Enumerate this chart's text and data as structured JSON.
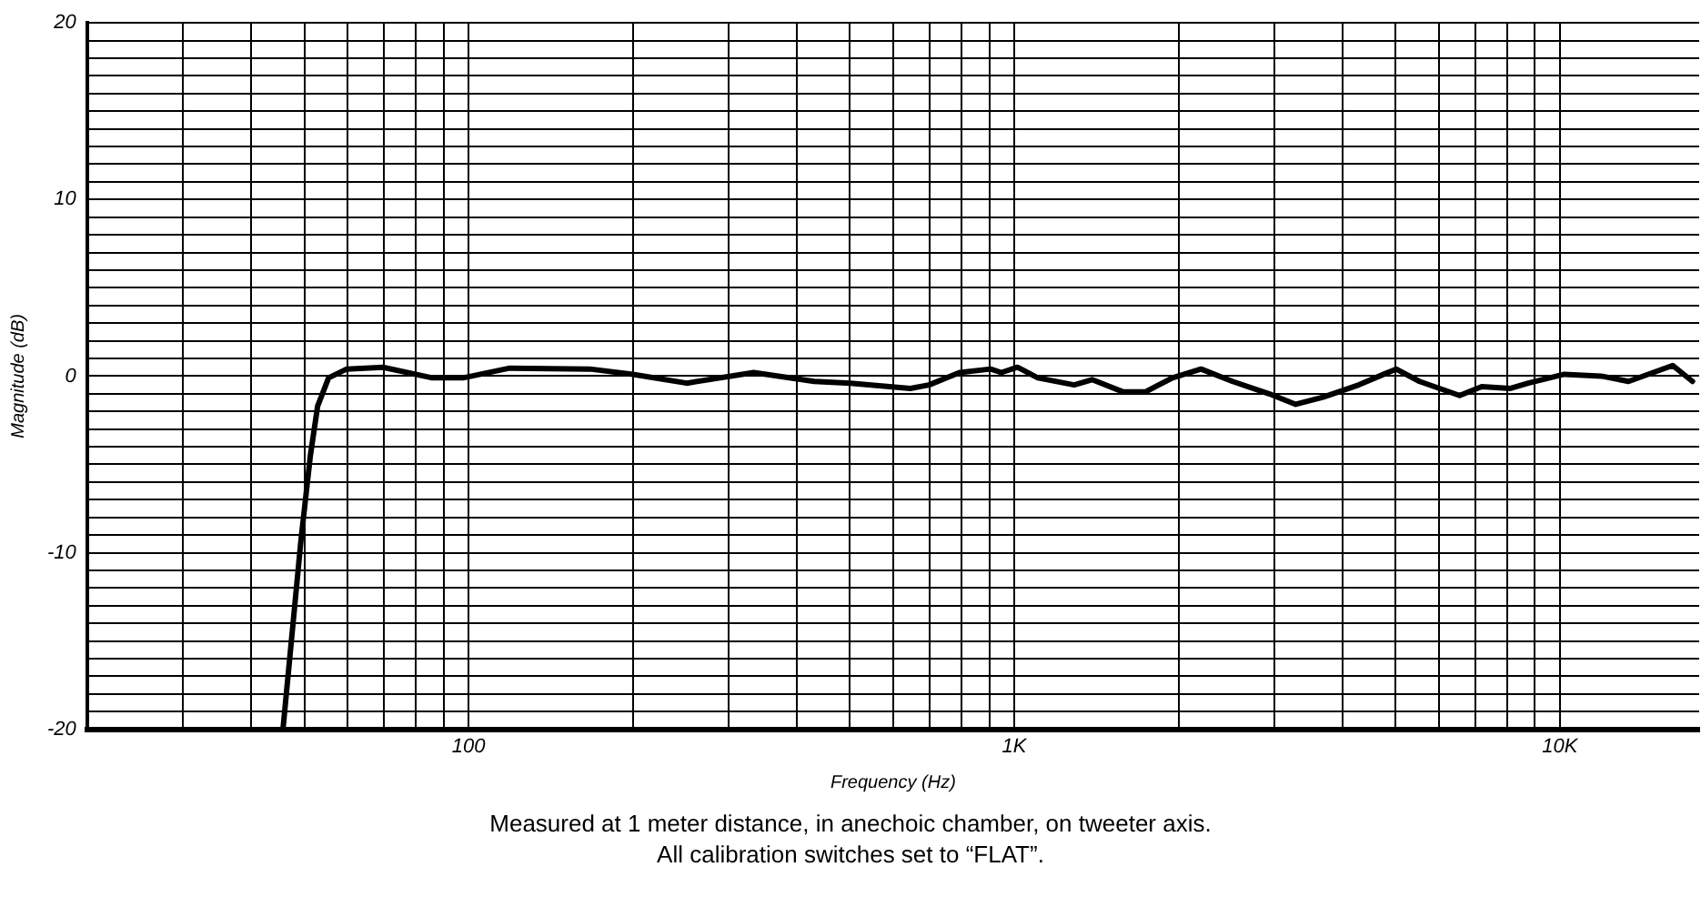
{
  "chart_data": {
    "type": "line",
    "xlabel": "Frequency (Hz)",
    "ylabel": "Magnitude (dB)",
    "x": [
      45.7,
      49.3,
      51.3,
      52.9,
      55.4,
      59.8,
      69.7,
      85.8,
      97.7,
      119,
      167,
      200,
      251,
      333,
      430,
      501,
      541,
      645,
      698,
      794,
      905,
      947,
      1014,
      1105,
      1288,
      1389,
      1585,
      1738,
      1950,
      2200,
      2512,
      2930,
      3280,
      3680,
      4280,
      5010,
      5530,
      6550,
      7190,
      8120,
      8750,
      10190,
      11910,
      13360,
      16100,
      17500
    ],
    "series": [
      {
        "color": "#000000",
        "values": [
          -20,
          -9.3,
          -4.5,
          -1.7,
          -0.1,
          0.4,
          0.5,
          -0.1,
          -0.1,
          0.45,
          0.4,
          0.1,
          -0.4,
          0.2,
          -0.3,
          -0.4,
          -0.5,
          -0.7,
          -0.5,
          0.2,
          0.4,
          0.2,
          0.5,
          -0.1,
          -0.5,
          -0.2,
          -0.9,
          -0.9,
          -0.1,
          0.4,
          -0.3,
          -1.0,
          -1.6,
          -1.2,
          -0.5,
          0.4,
          -0.3,
          -1.1,
          -0.6,
          -0.7,
          -0.4,
          0.1,
          0.0,
          -0.3,
          0.6,
          -0.3
        ]
      }
    ],
    "xlim": [
      20,
      18000
    ],
    "ylim": [
      -20,
      20
    ],
    "log": "x",
    "grid": true,
    "legend": false,
    "marker": "none",
    "line_style": "solid",
    "xticks": [
      {
        "value": 20,
        "label": null
      },
      {
        "value": 30,
        "label": null
      },
      {
        "value": 40,
        "label": null
      },
      {
        "value": 50,
        "label": null
      },
      {
        "value": 60,
        "label": null
      },
      {
        "value": 70,
        "label": null
      },
      {
        "value": 80,
        "label": null
      },
      {
        "value": 90,
        "label": null
      },
      {
        "value": 100,
        "label": "100"
      },
      {
        "value": 200,
        "label": null
      },
      {
        "value": 300,
        "label": null
      },
      {
        "value": 400,
        "label": null
      },
      {
        "value": 500,
        "label": null
      },
      {
        "value": 600,
        "label": null
      },
      {
        "value": 700,
        "label": null
      },
      {
        "value": 800,
        "label": null
      },
      {
        "value": 900,
        "label": null
      },
      {
        "value": 1000,
        "label": "1K"
      },
      {
        "value": 2000,
        "label": null
      },
      {
        "value": 3000,
        "label": null
      },
      {
        "value": 4000,
        "label": null
      },
      {
        "value": 5000,
        "label": null
      },
      {
        "value": 6000,
        "label": null
      },
      {
        "value": 7000,
        "label": null
      },
      {
        "value": 8000,
        "label": null
      },
      {
        "value": 9000,
        "label": null
      },
      {
        "value": 10000,
        "label": "10K"
      }
    ],
    "yticks": [
      -20,
      {
        "value": -19,
        "label": null
      },
      {
        "value": -18,
        "label": null
      },
      {
        "value": -17,
        "label": null
      },
      {
        "value": -16,
        "label": null
      },
      {
        "value": -15,
        "label": null
      },
      {
        "value": -14,
        "label": null
      },
      {
        "value": -13,
        "label": null
      },
      {
        "value": -12,
        "label": null
      },
      {
        "value": -11,
        "label": null
      },
      -10,
      {
        "value": -9,
        "label": null
      },
      {
        "value": -8,
        "label": null
      },
      {
        "value": -7,
        "label": null
      },
      {
        "value": -6,
        "label": null
      },
      {
        "value": -5,
        "label": null
      },
      {
        "value": -4,
        "label": null
      },
      {
        "value": -3,
        "label": null
      },
      {
        "value": -2,
        "label": null
      },
      {
        "value": -1,
        "label": null
      },
      0,
      {
        "value": 1,
        "label": null
      },
      {
        "value": 2,
        "label": null
      },
      {
        "value": 3,
        "label": null
      },
      {
        "value": 4,
        "label": null
      },
      {
        "value": 5,
        "label": null
      },
      {
        "value": 6,
        "label": null
      },
      {
        "value": 7,
        "label": null
      },
      {
        "value": 8,
        "label": null
      },
      {
        "value": 9,
        "label": null
      },
      10,
      {
        "value": 11,
        "label": null
      },
      {
        "value": 12,
        "label": null
      },
      {
        "value": 13,
        "label": null
      },
      {
        "value": 14,
        "label": null
      },
      {
        "value": 15,
        "label": null
      },
      {
        "value": 16,
        "label": null
      },
      {
        "value": 17,
        "label": null
      },
      {
        "value": 18,
        "label": null
      },
      {
        "value": 19,
        "label": null
      },
      20
    ],
    "annotations": [
      "Measured at 1 meter distance, in anechoic chamber, on tweeter axis.",
      "All calibration switches set to “FLAT”."
    ]
  }
}
